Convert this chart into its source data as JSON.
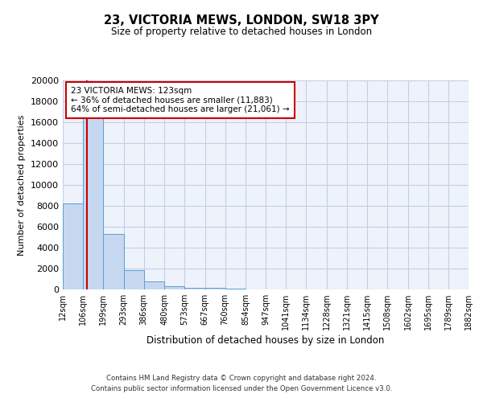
{
  "title": "23, VICTORIA MEWS, LONDON, SW18 3PY",
  "subtitle": "Size of property relative to detached houses in London",
  "xlabel": "Distribution of detached houses by size in London",
  "ylabel": "Number of detached properties",
  "bin_labels": [
    "12sqm",
    "106sqm",
    "199sqm",
    "293sqm",
    "386sqm",
    "480sqm",
    "573sqm",
    "667sqm",
    "760sqm",
    "854sqm",
    "947sqm",
    "1041sqm",
    "1134sqm",
    "1228sqm",
    "1321sqm",
    "1415sqm",
    "1508sqm",
    "1602sqm",
    "1695sqm",
    "1789sqm",
    "1882sqm"
  ],
  "bar_heights": [
    8200,
    16600,
    5300,
    1850,
    750,
    300,
    180,
    120,
    80,
    0,
    0,
    0,
    0,
    0,
    0,
    0,
    0,
    0,
    0,
    0
  ],
  "ylim": [
    0,
    20000
  ],
  "yticks": [
    0,
    2000,
    4000,
    6000,
    8000,
    10000,
    12000,
    14000,
    16000,
    18000,
    20000
  ],
  "bar_color": "#c5d8f0",
  "bar_edge_color": "#5a9fd4",
  "property_line_x": 123,
  "annotation_title": "23 VICTORIA MEWS: 123sqm",
  "annotation_line1": "← 36% of detached houses are smaller (11,883)",
  "annotation_line2": "64% of semi-detached houses are larger (21,061) →",
  "annotation_box_color": "#ffffff",
  "annotation_box_edge": "#cc0000",
  "vline_color": "#cc0000",
  "footer_line1": "Contains HM Land Registry data © Crown copyright and database right 2024.",
  "footer_line2": "Contains public sector information licensed under the Open Government Licence v3.0.",
  "bin_edges": [
    12,
    106,
    199,
    293,
    386,
    480,
    573,
    667,
    760,
    854,
    947,
    1041,
    1134,
    1228,
    1321,
    1415,
    1508,
    1602,
    1695,
    1789,
    1882
  ],
  "background_color": "#eef2fa"
}
